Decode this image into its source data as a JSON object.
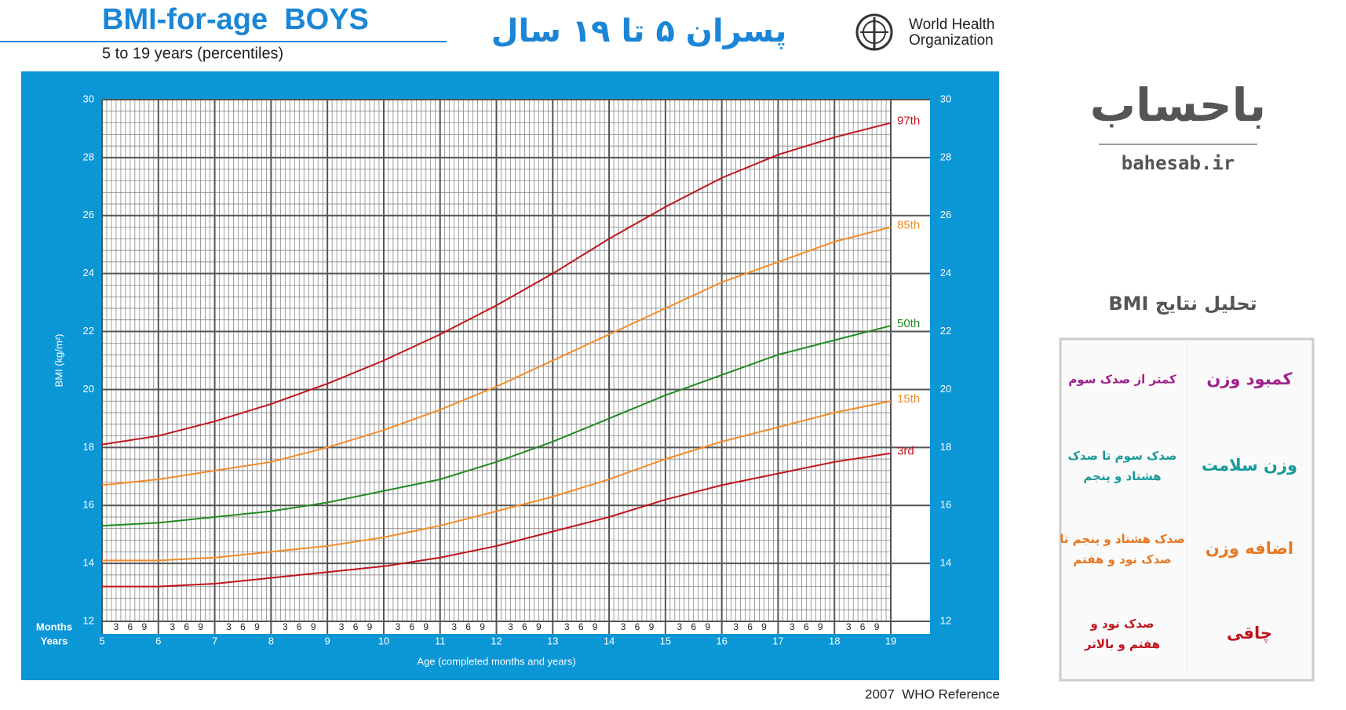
{
  "header": {
    "title": "BMI-for-age  BOYS",
    "subtitle": "5 to 19 years (percentiles)",
    "persian_title": "پسران ۵ تا ۱۹ سال",
    "org_line1": "World Health",
    "org_line2": "Organization",
    "source": "2007  WHO Reference"
  },
  "chart_data": {
    "type": "line",
    "y_label": "BMI (kg/m²)",
    "x_label": "Age (completed months and years)",
    "month_axis_label": "Months",
    "year_axis_label": "Years",
    "month_ticks": [
      3,
      6,
      9
    ],
    "x": [
      5,
      6,
      7,
      8,
      9,
      10,
      11,
      12,
      13,
      14,
      15,
      16,
      17,
      18,
      19
    ],
    "xlim": [
      5,
      19
    ],
    "xticks": [
      5,
      6,
      7,
      8,
      9,
      10,
      11,
      12,
      13,
      14,
      15,
      16,
      17,
      18,
      19
    ],
    "ylim": [
      12,
      30
    ],
    "yticks": [
      12,
      14,
      16,
      18,
      20,
      22,
      24,
      26,
      28,
      30
    ],
    "grid": true,
    "series": [
      {
        "name": "97th",
        "color": "#c0141c",
        "values": [
          18.1,
          18.4,
          18.9,
          19.5,
          20.2,
          21.0,
          21.9,
          22.9,
          24.0,
          25.2,
          26.3,
          27.3,
          28.1,
          28.7,
          29.2
        ]
      },
      {
        "name": "85th",
        "color": "#f28c28",
        "values": [
          16.7,
          16.9,
          17.2,
          17.5,
          18.0,
          18.6,
          19.3,
          20.1,
          21.0,
          21.9,
          22.8,
          23.7,
          24.4,
          25.1,
          25.6
        ]
      },
      {
        "name": "50th",
        "color": "#238a23",
        "values": [
          15.3,
          15.4,
          15.6,
          15.8,
          16.1,
          16.5,
          16.9,
          17.5,
          18.2,
          19.0,
          19.8,
          20.5,
          21.2,
          21.7,
          22.2
        ]
      },
      {
        "name": "15th",
        "color": "#f28c28",
        "values": [
          14.1,
          14.1,
          14.2,
          14.4,
          14.6,
          14.9,
          15.3,
          15.8,
          16.3,
          16.9,
          17.6,
          18.2,
          18.7,
          19.2,
          19.6
        ]
      },
      {
        "name": "3rd",
        "color": "#c0141c",
        "values": [
          13.2,
          13.2,
          13.3,
          13.5,
          13.7,
          13.9,
          14.2,
          14.6,
          15.1,
          15.6,
          16.2,
          16.7,
          17.1,
          17.5,
          17.8
        ]
      }
    ]
  },
  "panel": {
    "brand": "باحساب",
    "site": "bahesab.ir",
    "heading": "تحلیل نتایج BMI",
    "rows": [
      {
        "label": "کمبود وزن",
        "desc": "کمتر از صدک سوم",
        "color": "#a0228c"
      },
      {
        "label": "وزن سلامت",
        "desc": "صدک سوم تا صدک هشتاد و پنجم",
        "color": "#1a9a9a"
      },
      {
        "label": "اضافه وزن",
        "desc": "صدک هشتاد و پنجم تا صدک نود و هفتم",
        "color": "#e87722"
      },
      {
        "label": "چاقی",
        "desc": "صدک نود و هفتم و بالاتر",
        "color": "#c0141c"
      }
    ]
  }
}
